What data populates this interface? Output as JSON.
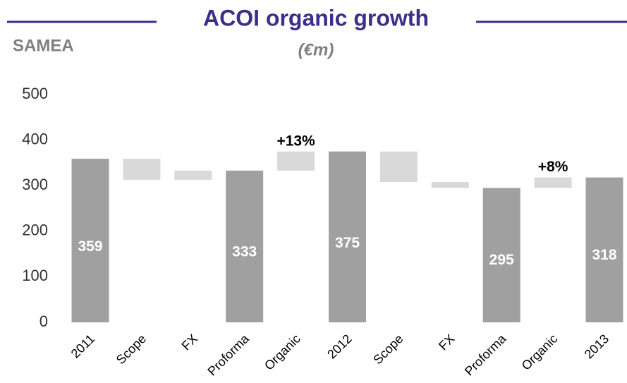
{
  "chart_data": {
    "type": "waterfall",
    "title": "ACOI organic growth",
    "subtitle": "(€m)",
    "region": "SAMEA",
    "categories": [
      "2011",
      "Scope",
      "FX",
      "Proforma",
      "Organic",
      "2012",
      "Scope",
      "FX",
      "Proforma",
      "Organic",
      "2013"
    ],
    "kinds": [
      "total",
      "delta",
      "delta",
      "total",
      "delta",
      "total",
      "delta",
      "delta",
      "total",
      "delta",
      "total"
    ],
    "values": [
      359,
      -46,
      20,
      333,
      42,
      375,
      -67,
      -13,
      295,
      23,
      318
    ],
    "total_color": "#a0a0a0",
    "delta_color": "#d9d9d9",
    "annotations": [
      {
        "text": "+13%",
        "category": 4
      },
      {
        "text": "+8%",
        "category": 9
      }
    ],
    "ylim": [
      0,
      500
    ],
    "yticks": [
      0,
      100,
      200,
      300,
      400,
      500
    ],
    "grid": false
  }
}
